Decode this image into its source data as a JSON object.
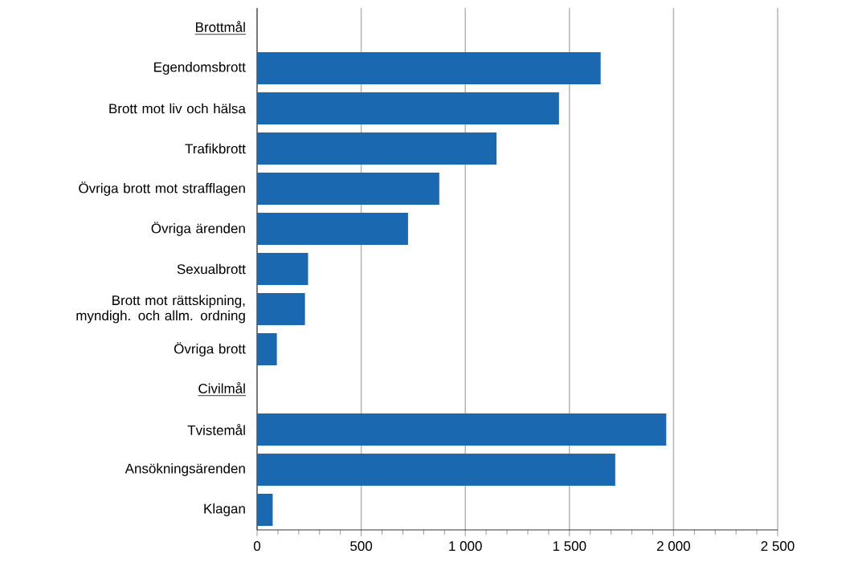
{
  "chart_data": {
    "type": "bar",
    "orientation": "horizontal",
    "categories": [
      "Brottmål",
      "Egendomsbrott",
      "Brott mot liv och hälsa",
      "Trafikbrott",
      "Övriga brott mot strafflagen",
      "Övriga ärenden",
      "Sexualbrott",
      "Brott mot rättskipning, myndigh. och allm. ordning",
      "Övriga brott",
      "Civilmål",
      "Tvistemål",
      "Ansökningsärenden",
      "Klagan"
    ],
    "values": [
      null,
      1650,
      1450,
      1150,
      875,
      725,
      245,
      230,
      95,
      null,
      1965,
      1720,
      75
    ],
    "color": "#1a69b0",
    "xlim": [
      0,
      2500
    ],
    "xticks": [
      0,
      500,
      {
        "value": 1000,
        "label": "1 000"
      },
      {
        "value": 1500,
        "label": "1 500"
      },
      {
        "value": 2000,
        "label": "2 000"
      },
      {
        "value": 2500,
        "label": "2 500"
      }
    ],
    "grid": "x"
  }
}
